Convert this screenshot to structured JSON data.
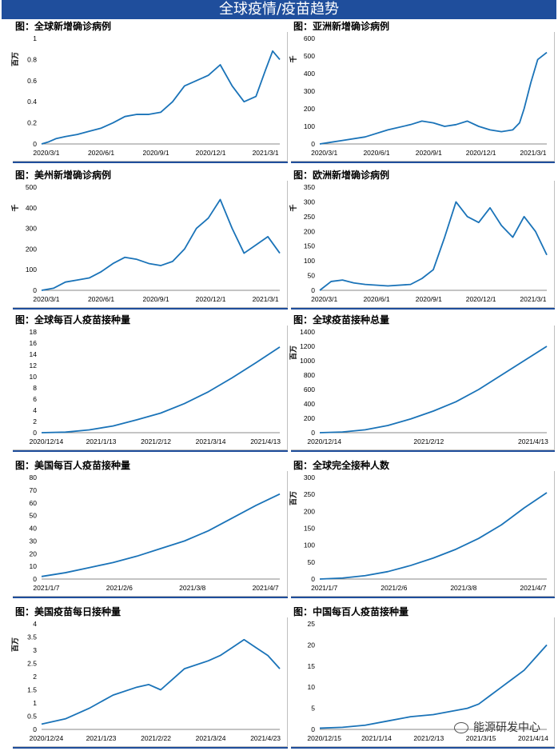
{
  "banner_title": "全球疫情/疫苗趋势",
  "colors": {
    "line": "#1a73b8",
    "banner": "#1f4e9c",
    "axis": "#bfbfbf"
  },
  "watermark": {
    "icon": "wechat-icon",
    "text": "能源研发中心"
  },
  "chart_data": [
    {
      "id": "p1",
      "type": "line",
      "title": "图：全球新增确诊病例",
      "ylabel": "百万",
      "ylim": [
        0,
        1
      ],
      "yticks": [
        "0",
        "0.2",
        "0.4",
        "0.6",
        "0.8",
        "1"
      ],
      "xticks": [
        "2020/3/1",
        "2020/6/1",
        "2020/9/1",
        "2020/12/1",
        "2021/3/1"
      ],
      "x": [
        0,
        0.03,
        0.06,
        0.1,
        0.15,
        0.2,
        0.25,
        0.3,
        0.35,
        0.4,
        0.45,
        0.5,
        0.55,
        0.6,
        0.65,
        0.7,
        0.75,
        0.8,
        0.85,
        0.9,
        0.94,
        0.97,
        1
      ],
      "values": [
        0,
        0.02,
        0.05,
        0.07,
        0.09,
        0.12,
        0.15,
        0.2,
        0.26,
        0.28,
        0.28,
        0.3,
        0.4,
        0.55,
        0.6,
        0.65,
        0.75,
        0.55,
        0.4,
        0.45,
        0.7,
        0.88,
        0.8
      ]
    },
    {
      "id": "p2",
      "type": "line",
      "title": "图：亚洲新增确诊病例",
      "ylabel": "千",
      "ylim": [
        0,
        600
      ],
      "yticks": [
        "0",
        "100",
        "200",
        "300",
        "400",
        "500",
        "600"
      ],
      "xticks": [
        "2020/3/1",
        "2020/6/1",
        "2020/9/1",
        "2020/12/1",
        "2021/3/1"
      ],
      "x": [
        0,
        0.05,
        0.1,
        0.2,
        0.3,
        0.4,
        0.45,
        0.5,
        0.55,
        0.6,
        0.65,
        0.7,
        0.75,
        0.8,
        0.85,
        0.88,
        0.9,
        0.93,
        0.96,
        1
      ],
      "values": [
        0,
        10,
        20,
        40,
        80,
        110,
        130,
        120,
        100,
        110,
        130,
        100,
        80,
        70,
        80,
        120,
        200,
        350,
        480,
        520
      ]
    },
    {
      "id": "p3",
      "type": "line",
      "title": "图：美州新增确诊病例",
      "ylabel": "千",
      "ylim": [
        0,
        500
      ],
      "yticks": [
        "0",
        "100",
        "200",
        "300",
        "400",
        "500"
      ],
      "xticks": [
        "2020/3/1",
        "2020/6/1",
        "2020/9/1",
        "2020/12/1",
        "2021/3/1"
      ],
      "x": [
        0,
        0.05,
        0.1,
        0.15,
        0.2,
        0.25,
        0.3,
        0.35,
        0.4,
        0.45,
        0.5,
        0.55,
        0.6,
        0.65,
        0.7,
        0.75,
        0.8,
        0.85,
        0.9,
        0.95,
        1
      ],
      "values": [
        0,
        10,
        40,
        50,
        60,
        90,
        130,
        160,
        150,
        130,
        120,
        140,
        200,
        300,
        350,
        440,
        300,
        180,
        220,
        260,
        180
      ]
    },
    {
      "id": "p4",
      "type": "line",
      "title": "图：欧洲新增确诊病例",
      "ylabel": "千",
      "ylim": [
        0,
        350
      ],
      "yticks": [
        "0",
        "50",
        "100",
        "150",
        "200",
        "250",
        "300",
        "350"
      ],
      "xticks": [
        "2020/3/1",
        "2020/6/1",
        "2020/9/1",
        "2020/12/1",
        "2021/3/1"
      ],
      "x": [
        0,
        0.05,
        0.1,
        0.15,
        0.2,
        0.3,
        0.4,
        0.45,
        0.5,
        0.55,
        0.6,
        0.65,
        0.7,
        0.75,
        0.8,
        0.85,
        0.9,
        0.95,
        1
      ],
      "values": [
        0,
        30,
        35,
        25,
        20,
        15,
        20,
        40,
        70,
        180,
        300,
        250,
        230,
        280,
        220,
        180,
        250,
        200,
        120
      ]
    },
    {
      "id": "p5",
      "type": "line",
      "title": "图：全球每百人疫苗接种量",
      "ylim": [
        0,
        18
      ],
      "yticks": [
        "0",
        "2",
        "4",
        "6",
        "8",
        "10",
        "12",
        "14",
        "16",
        "18"
      ],
      "xticks": [
        "2020/12/14",
        "2021/1/13",
        "2021/2/12",
        "2021/3/14",
        "2021/4/13"
      ],
      "x": [
        0,
        0.1,
        0.2,
        0.3,
        0.4,
        0.5,
        0.6,
        0.7,
        0.8,
        0.9,
        1
      ],
      "values": [
        0,
        0.1,
        0.5,
        1.2,
        2.3,
        3.5,
        5.2,
        7.3,
        9.8,
        12.5,
        15.3
      ]
    },
    {
      "id": "p6",
      "type": "line",
      "title": "图：全球疫苗接种总量",
      "ylabel": "百万",
      "ylim": [
        0,
        1400
      ],
      "yticks": [
        "0",
        "200",
        "400",
        "600",
        "800",
        "1000",
        "1200",
        "1400"
      ],
      "xticks": [
        "2020/12/14",
        "2021/2/12",
        "2021/4/13"
      ],
      "x": [
        0,
        0.1,
        0.2,
        0.3,
        0.4,
        0.5,
        0.6,
        0.7,
        0.8,
        0.9,
        1
      ],
      "values": [
        0,
        10,
        40,
        100,
        190,
        300,
        430,
        600,
        800,
        1000,
        1200
      ]
    },
    {
      "id": "p7",
      "type": "line",
      "title": "图：美国每百人疫苗接种量",
      "ylim": [
        0,
        80
      ],
      "yticks": [
        "0",
        "10",
        "20",
        "30",
        "40",
        "50",
        "60",
        "70",
        "80"
      ],
      "xticks": [
        "2021/1/7",
        "2021/2/6",
        "2021/3/8",
        "2021/4/7"
      ],
      "x": [
        0,
        0.1,
        0.2,
        0.3,
        0.4,
        0.5,
        0.6,
        0.7,
        0.8,
        0.9,
        1
      ],
      "values": [
        2,
        5,
        9,
        13,
        18,
        24,
        30,
        38,
        48,
        58,
        67
      ]
    },
    {
      "id": "p8",
      "type": "line",
      "title": "图：全球完全接种人数",
      "ylabel": "百万",
      "ylim": [
        0,
        300
      ],
      "yticks": [
        "0",
        "50",
        "100",
        "150",
        "200",
        "250",
        "300"
      ],
      "xticks": [
        "2021/1/7",
        "2021/2/6",
        "2021/3/8",
        "2021/4/7"
      ],
      "x": [
        0,
        0.1,
        0.2,
        0.3,
        0.4,
        0.5,
        0.6,
        0.7,
        0.8,
        0.9,
        1
      ],
      "values": [
        0,
        3,
        10,
        22,
        40,
        62,
        88,
        120,
        160,
        210,
        255
      ]
    },
    {
      "id": "p9",
      "type": "line",
      "title": "图：美国疫苗每日接种量",
      "ylabel": "百万",
      "ylim": [
        0,
        4
      ],
      "yticks": [
        "0",
        "0.5",
        "1",
        "1.5",
        "2",
        "2.5",
        "3",
        "3.5",
        "4"
      ],
      "xticks": [
        "2020/12/24",
        "2021/1/23",
        "2021/2/22",
        "2021/3/24",
        "2021/4/23"
      ],
      "x": [
        0,
        0.1,
        0.2,
        0.3,
        0.4,
        0.45,
        0.5,
        0.55,
        0.6,
        0.7,
        0.75,
        0.8,
        0.85,
        0.9,
        0.95,
        1
      ],
      "values": [
        0.2,
        0.4,
        0.8,
        1.3,
        1.6,
        1.7,
        1.5,
        1.9,
        2.3,
        2.6,
        2.8,
        3.1,
        3.4,
        3.1,
        2.8,
        2.3
      ]
    },
    {
      "id": "p10",
      "type": "line",
      "title": "图：中国每百人疫苗接种量",
      "ylim": [
        0,
        25
      ],
      "yticks": [
        "0",
        "5",
        "10",
        "15",
        "20",
        "25"
      ],
      "xticks": [
        "2020/12/15",
        "2021/1/14",
        "2021/2/13",
        "2021/3/15",
        "2021/4/14"
      ],
      "x": [
        0,
        0.1,
        0.2,
        0.3,
        0.4,
        0.5,
        0.6,
        0.65,
        0.7,
        0.75,
        0.8,
        0.85,
        0.9,
        0.95,
        1
      ],
      "values": [
        0.3,
        0.5,
        1,
        2,
        3,
        3.5,
        4.5,
        5,
        6,
        8,
        10,
        12,
        14,
        17,
        20
      ]
    }
  ]
}
